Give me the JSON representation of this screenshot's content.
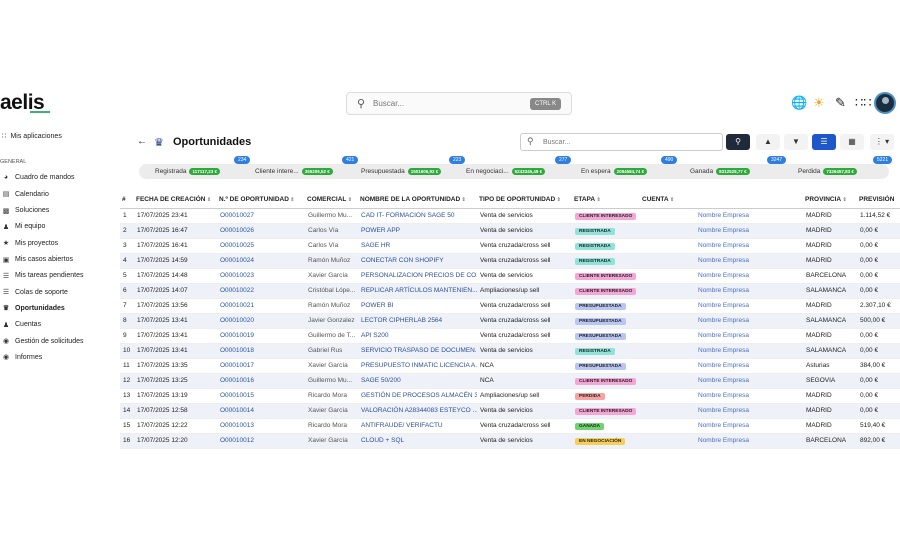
{
  "app": {
    "logo": "aelis",
    "accent": "#3cb371"
  },
  "header": {
    "search_placeholder": "Buscar...",
    "shortcut": "CTRL K",
    "icons": [
      "globe-icon",
      "sun-icon",
      "edit-icon",
      "grid-icon",
      "user-avatar"
    ]
  },
  "sidebar": {
    "apps_label": "Mis aplicaciones",
    "section": "GENERAL",
    "items": [
      {
        "label": "Cuadro de mandos",
        "icon": "gauge-icon"
      },
      {
        "label": "Calendario",
        "icon": "calendar-icon"
      },
      {
        "label": "Soluciones",
        "icon": "box-icon"
      },
      {
        "label": "Mi equipo",
        "icon": "team-icon"
      },
      {
        "label": "Mis proyectos",
        "icon": "project-icon"
      },
      {
        "label": "Mis casos abiertos",
        "icon": "briefcase-icon"
      },
      {
        "label": "Mis tareas pendientes",
        "icon": "tasks-icon"
      },
      {
        "label": "Colas de soporte",
        "icon": "list-icon"
      },
      {
        "label": "Oportunidades",
        "icon": "crown-icon",
        "active": true
      },
      {
        "label": "Cuentas",
        "icon": "user-icon"
      },
      {
        "label": "Gestión de solicitudes",
        "icon": "request-icon"
      },
      {
        "label": "Informes",
        "icon": "report-icon"
      }
    ]
  },
  "page": {
    "title": "Oportunidades",
    "search_placeholder": "Buscar..."
  },
  "stages": [
    {
      "label": "Registrada",
      "amount": "117117,23 €",
      "count": "234"
    },
    {
      "label": "Cliente intere...",
      "amount": "355206,52 €",
      "count": "421"
    },
    {
      "label": "Presupuestada",
      "amount": "1501606,92 €",
      "count": "223"
    },
    {
      "label": "En negociaci...",
      "amount": "5243345,49 €",
      "count": "277"
    },
    {
      "label": "En espera",
      "amount": "2084584,74 €",
      "count": "490"
    },
    {
      "label": "Ganada",
      "amount": "8312528,77 €",
      "count": "3247"
    },
    {
      "label": "Perdida",
      "amount": "7326457,83 €",
      "count": "5221"
    }
  ],
  "table": {
    "columns": [
      "#",
      "FECHA DE CREACIÓN",
      "N.º DE OPORTUNIDAD",
      "COMERCIAL",
      "NOMBRE DE LA OPORTUNIDAD",
      "TIPO DE OPORTUNIDAD",
      "ETAPA",
      "CUENTA",
      "PROVINCIA",
      "PREVISIÓN"
    ],
    "rows": [
      [
        "1",
        "17/07/2025 23:41",
        "O00010027",
        "Guillermo Mu...",
        "CAD IT- FORMACION SAGE 50",
        "Venta de servicios",
        "CLIENTE INTERESADO",
        "Nombre Empresa",
        "MADRID",
        "1.114,52 €"
      ],
      [
        "2",
        "17/07/2025 16:47",
        "O00010026",
        "Carlos Vía",
        "POWER APP",
        "Venta de servicios",
        "REGISTRADA",
        "Nombre Empresa",
        "MADRID",
        "0,00 €"
      ],
      [
        "3",
        "17/07/2025 16:41",
        "O00010025",
        "Carlos Vía",
        "SAGE HR",
        "Venta cruzada/cross sell",
        "REGISTRADA",
        "Nombre Empresa",
        "MADRID",
        "0,00 €"
      ],
      [
        "4",
        "17/07/2025 14:59",
        "O00010024",
        "Ramón Muñoz",
        "CONECTAR CON SHOPIFY",
        "Venta cruzada/cross sell",
        "REGISTRADA",
        "Nombre Empresa",
        "MADRID",
        "0,00 €"
      ],
      [
        "5",
        "17/07/2025 14:48",
        "O00010023",
        "Xavier García",
        "PERSONALIZACION PRECIOS DE CO...",
        "Venta de servicios",
        "CLIENTE INTERESADO",
        "Nombre Empresa",
        "BARCELONA",
        "0,00 €"
      ],
      [
        "6",
        "17/07/2025 14:07",
        "O00010022",
        "Cristóbal Lópe...",
        "REPLICAR ARTÍCULOS MANTENIEN...",
        "Ampliaciones/up sell",
        "CLIENTE INTERESADO",
        "Nombre Empresa",
        "SALAMANCA",
        "0,00 €"
      ],
      [
        "7",
        "17/07/2025 13:56",
        "O00010021",
        "Ramón Muñoz",
        "POWER BI",
        "Venta cruzada/cross sell",
        "PRESUPUESTADA",
        "Nombre Empresa",
        "MADRID",
        "2.307,10 €"
      ],
      [
        "8",
        "17/07/2025 13:41",
        "O00010020",
        "Javier Gonzalez",
        "LECTOR CIPHERLAB 2564",
        "Venta cruzada/cross sell",
        "PRESUPUESTADA",
        "Nombre Empresa",
        "SALAMANCA",
        "500,00 €"
      ],
      [
        "9",
        "17/07/2025 13:41",
        "O00010019",
        "Guillermo de T...",
        "API S200",
        "Venta cruzada/cross sell",
        "PRESUPUESTADA",
        "Nombre Empresa",
        "MADRID",
        "0,00 €"
      ],
      [
        "10",
        "17/07/2025 13:41",
        "O00010018",
        "Gabriel Rus",
        "SERVICIO TRASPASO DE DOCUMEN...",
        "Venta de servicios",
        "REGISTRADA",
        "Nombre Empresa",
        "SALAMANCA",
        "0,00 €"
      ],
      [
        "11",
        "17/07/2025 13:35",
        "O00010017",
        "Xavier García",
        "PRESUPUESTO INMATIC LICENCIA A...",
        "NCA",
        "PRESUPUESTADA",
        "Nombre Empresa",
        "Asturias",
        "384,00 €"
      ],
      [
        "12",
        "17/07/2025 13:25",
        "O00010016",
        "Guillermo Mu...",
        "SAGE 50/200",
        "NCA",
        "CLIENTE INTERESADO",
        "Nombre Empresa",
        "SEGOVIA",
        "0,00 €"
      ],
      [
        "13",
        "17/07/2025 13:19",
        "O00010015",
        "Ricardo Mora",
        "GESTIÓN DE PROCESOS ALMACÉN 3",
        "Ampliaciones/up sell",
        "PERDIDA",
        "Nombre Empresa",
        "MADRID",
        "0,00 €"
      ],
      [
        "14",
        "17/07/2025 12:58",
        "O00010014",
        "Xavier García",
        "VALORACIÓN A28344083 ESTEYCO ...",
        "Venta de servicios",
        "CLIENTE INTERESADO",
        "Nombre Empresa",
        "MADRID",
        "0,00 €"
      ],
      [
        "15",
        "17/07/2025 12:22",
        "O00010013",
        "Ricardo Mora",
        "ANTIFRAUDE/ VERIFACTU",
        "Venta cruzada/cross sell",
        "GANADA",
        "Nombre Empresa",
        "MADRID",
        "519,40 €"
      ],
      [
        "16",
        "17/07/2025 12:20",
        "O00010012",
        "Xavier García",
        "CLOUD + SQL",
        "Venta de servicios",
        "EN NEGOCIACIÓN",
        "Nombre Empresa",
        "BARCELONA",
        "892,00 €"
      ]
    ]
  },
  "stage_colors": {
    "CLIENTE INTERESADO": "#f4a6d6",
    "REGISTRADA": "#8fe3d8",
    "PRESUPUESTADA": "#b9c6f2",
    "PERDIDA": "#f5a3a3",
    "GANADA": "#6fd46f",
    "EN NEGOCIACIÓN": "#f6cf5a"
  }
}
